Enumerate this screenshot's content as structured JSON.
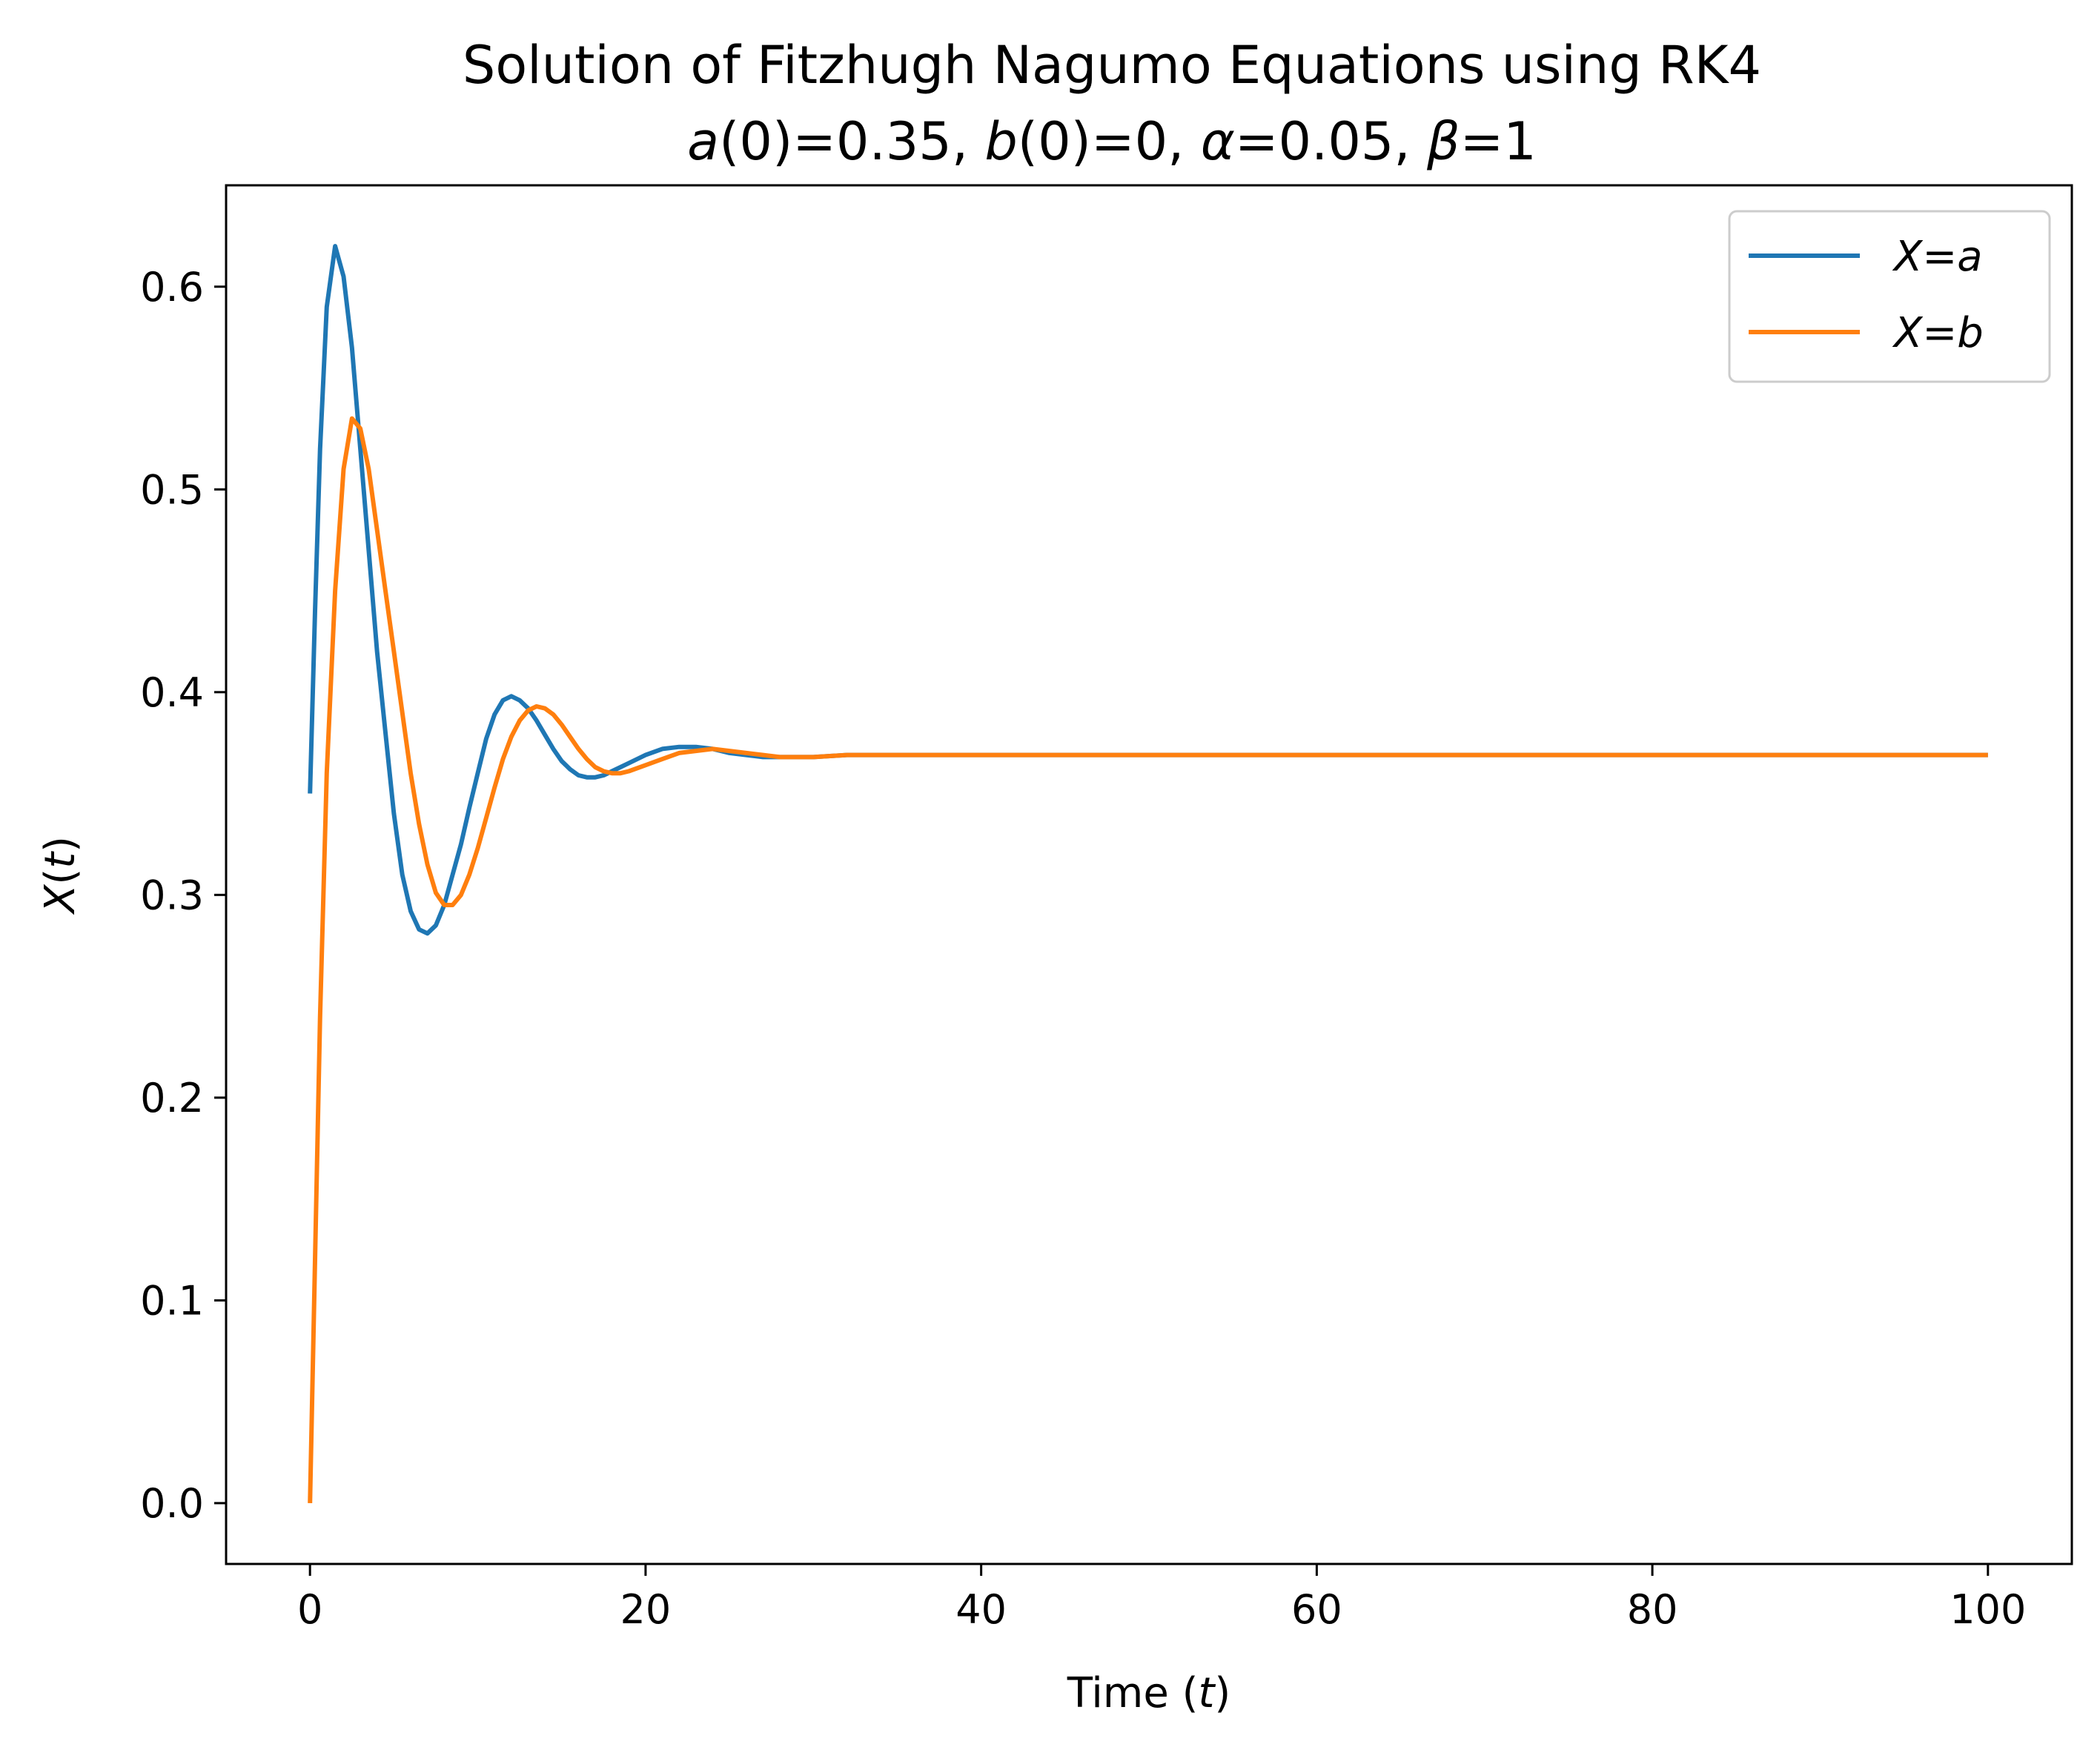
{
  "chart_data": {
    "type": "line",
    "title": {
      "line1": "Solution of Fitzhugh Nagumo Equations using RK4",
      "line2": "a(0)=0.35, b(0)=0, α=0.05, β=1"
    },
    "xlabel": "Time (t)",
    "ylabel": "X(t)",
    "xlim": [
      -5,
      105
    ],
    "ylim": [
      -0.03,
      0.65
    ],
    "x_ticks": [
      0,
      20,
      40,
      60,
      80,
      100
    ],
    "y_ticks": [
      0.0,
      0.1,
      0.2,
      0.3,
      0.4,
      0.5,
      0.6
    ],
    "x_tick_labels": [
      "0",
      "20",
      "40",
      "60",
      "80",
      "100"
    ],
    "y_tick_labels": [
      "0.0",
      "0.1",
      "0.2",
      "0.3",
      "0.4",
      "0.5",
      "0.6"
    ],
    "grid": false,
    "legend_position": "top-right",
    "series": [
      {
        "name": "X=a",
        "color": "#1f77b4",
        "points": [
          [
            0,
            0.35
          ],
          [
            0.3,
            0.44
          ],
          [
            0.6,
            0.52
          ],
          [
            1.0,
            0.59
          ],
          [
            1.5,
            0.62
          ],
          [
            2.0,
            0.605
          ],
          [
            2.5,
            0.57
          ],
          [
            3.0,
            0.52
          ],
          [
            3.5,
            0.47
          ],
          [
            4.0,
            0.42
          ],
          [
            4.5,
            0.38
          ],
          [
            5.0,
            0.34
          ],
          [
            5.5,
            0.31
          ],
          [
            6.0,
            0.292
          ],
          [
            6.5,
            0.283
          ],
          [
            7.0,
            0.281
          ],
          [
            7.5,
            0.285
          ],
          [
            8.0,
            0.295
          ],
          [
            8.5,
            0.31
          ],
          [
            9.0,
            0.325
          ],
          [
            9.5,
            0.343
          ],
          [
            10.0,
            0.36
          ],
          [
            10.5,
            0.377
          ],
          [
            11.0,
            0.389
          ],
          [
            11.5,
            0.396
          ],
          [
            12.0,
            0.398
          ],
          [
            12.5,
            0.396
          ],
          [
            13.0,
            0.392
          ],
          [
            13.5,
            0.386
          ],
          [
            14.0,
            0.379
          ],
          [
            14.5,
            0.372
          ],
          [
            15.0,
            0.366
          ],
          [
            15.5,
            0.362
          ],
          [
            16.0,
            0.359
          ],
          [
            16.5,
            0.358
          ],
          [
            17.0,
            0.358
          ],
          [
            17.5,
            0.359
          ],
          [
            18.0,
            0.361
          ],
          [
            19.0,
            0.365
          ],
          [
            20.0,
            0.369
          ],
          [
            21.0,
            0.372
          ],
          [
            22.0,
            0.373
          ],
          [
            23.0,
            0.373
          ],
          [
            24.0,
            0.372
          ],
          [
            25.0,
            0.37
          ],
          [
            26.0,
            0.369
          ],
          [
            27.0,
            0.368
          ],
          [
            28.0,
            0.368
          ],
          [
            29.0,
            0.368
          ],
          [
            30.0,
            0.368
          ],
          [
            32.0,
            0.369
          ],
          [
            34.0,
            0.369
          ],
          [
            36.0,
            0.369
          ],
          [
            40.0,
            0.369
          ],
          [
            50.0,
            0.369
          ],
          [
            60.0,
            0.369
          ],
          [
            70.0,
            0.369
          ],
          [
            80.0,
            0.369
          ],
          [
            90.0,
            0.369
          ],
          [
            100.0,
            0.369
          ]
        ]
      },
      {
        "name": "X=b",
        "color": "#ff7f0e",
        "points": [
          [
            0,
            0.0
          ],
          [
            0.3,
            0.12
          ],
          [
            0.6,
            0.24
          ],
          [
            1.0,
            0.36
          ],
          [
            1.5,
            0.45
          ],
          [
            2.0,
            0.51
          ],
          [
            2.5,
            0.535
          ],
          [
            3.0,
            0.53
          ],
          [
            3.5,
            0.51
          ],
          [
            4.0,
            0.48
          ],
          [
            4.5,
            0.45
          ],
          [
            5.0,
            0.42
          ],
          [
            5.5,
            0.39
          ],
          [
            6.0,
            0.36
          ],
          [
            6.5,
            0.335
          ],
          [
            7.0,
            0.315
          ],
          [
            7.5,
            0.301
          ],
          [
            8.0,
            0.295
          ],
          [
            8.5,
            0.295
          ],
          [
            9.0,
            0.3
          ],
          [
            9.5,
            0.31
          ],
          [
            10.0,
            0.323
          ],
          [
            10.5,
            0.338
          ],
          [
            11.0,
            0.353
          ],
          [
            11.5,
            0.367
          ],
          [
            12.0,
            0.378
          ],
          [
            12.5,
            0.386
          ],
          [
            13.0,
            0.391
          ],
          [
            13.5,
            0.393
          ],
          [
            14.0,
            0.392
          ],
          [
            14.5,
            0.389
          ],
          [
            15.0,
            0.384
          ],
          [
            15.5,
            0.378
          ],
          [
            16.0,
            0.372
          ],
          [
            16.5,
            0.367
          ],
          [
            17.0,
            0.363
          ],
          [
            17.5,
            0.361
          ],
          [
            18.0,
            0.36
          ],
          [
            18.5,
            0.36
          ],
          [
            19.0,
            0.361
          ],
          [
            20.0,
            0.364
          ],
          [
            21.0,
            0.367
          ],
          [
            22.0,
            0.37
          ],
          [
            23.0,
            0.371
          ],
          [
            24.0,
            0.372
          ],
          [
            25.0,
            0.371
          ],
          [
            26.0,
            0.37
          ],
          [
            27.0,
            0.369
          ],
          [
            28.0,
            0.368
          ],
          [
            29.0,
            0.368
          ],
          [
            30.0,
            0.368
          ],
          [
            32.0,
            0.369
          ],
          [
            34.0,
            0.369
          ],
          [
            36.0,
            0.369
          ],
          [
            40.0,
            0.369
          ],
          [
            50.0,
            0.369
          ],
          [
            60.0,
            0.369
          ],
          [
            70.0,
            0.369
          ],
          [
            80.0,
            0.369
          ],
          [
            90.0,
            0.369
          ],
          [
            100.0,
            0.369
          ]
        ]
      }
    ]
  }
}
